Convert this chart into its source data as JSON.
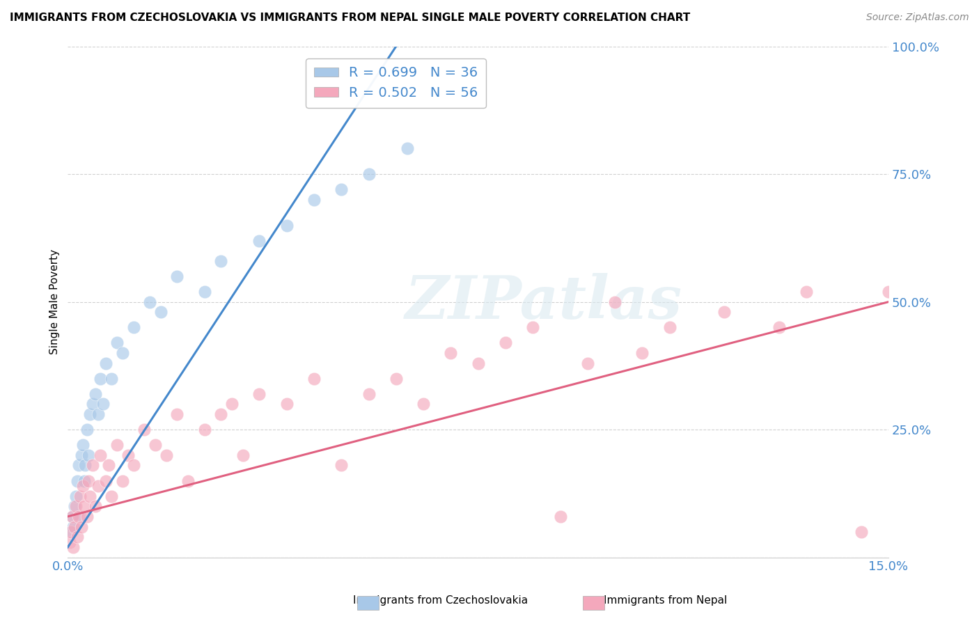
{
  "title": "IMMIGRANTS FROM CZECHOSLOVAKIA VS IMMIGRANTS FROM NEPAL SINGLE MALE POVERTY CORRELATION CHART",
  "source": "Source: ZipAtlas.com",
  "ylabel": "Single Male Poverty",
  "legend1_label": "Immigrants from Czechoslovakia",
  "legend2_label": "Immigrants from Nepal",
  "r1": 0.699,
  "n1": 36,
  "r2": 0.502,
  "n2": 56,
  "color1": "#a8c8e8",
  "color2": "#f4a8bc",
  "trendline1_color": "#4488cc",
  "trendline2_color": "#e06080",
  "watermark_text": "ZIPatlas",
  "xlim": [
    0.0,
    15.0
  ],
  "ylim": [
    0.0,
    100.0
  ],
  "background_color": "#ffffff",
  "grid_color": "#cccccc",
  "tick_color": "#4488cc",
  "trendline1_x": [
    0.0,
    6.0
  ],
  "trendline1_y": [
    2.0,
    100.0
  ],
  "trendline2_x": [
    0.0,
    15.0
  ],
  "trendline2_y": [
    8.0,
    50.0
  ],
  "czech_x": [
    0.05,
    0.08,
    0.1,
    0.12,
    0.15,
    0.18,
    0.2,
    0.22,
    0.25,
    0.28,
    0.3,
    0.32,
    0.35,
    0.38,
    0.4,
    0.45,
    0.5,
    0.55,
    0.6,
    0.65,
    0.7,
    0.8,
    0.9,
    1.0,
    1.2,
    1.5,
    1.7,
    2.0,
    2.5,
    2.8,
    3.5,
    4.0,
    4.5,
    5.0,
    5.5,
    6.2
  ],
  "czech_y": [
    5.0,
    8.0,
    6.0,
    10.0,
    12.0,
    15.0,
    18.0,
    8.0,
    20.0,
    22.0,
    15.0,
    18.0,
    25.0,
    20.0,
    28.0,
    30.0,
    32.0,
    28.0,
    35.0,
    30.0,
    38.0,
    35.0,
    42.0,
    40.0,
    45.0,
    50.0,
    48.0,
    55.0,
    52.0,
    58.0,
    62.0,
    65.0,
    70.0,
    72.0,
    75.0,
    80.0
  ],
  "nepal_x": [
    0.04,
    0.06,
    0.08,
    0.1,
    0.12,
    0.15,
    0.18,
    0.2,
    0.22,
    0.25,
    0.28,
    0.3,
    0.35,
    0.38,
    0.4,
    0.45,
    0.5,
    0.55,
    0.6,
    0.7,
    0.75,
    0.8,
    0.9,
    1.0,
    1.1,
    1.2,
    1.4,
    1.6,
    1.8,
    2.0,
    2.2,
    2.5,
    2.8,
    3.0,
    3.2,
    3.5,
    4.0,
    4.5,
    5.0,
    5.5,
    6.0,
    6.5,
    7.0,
    7.5,
    8.0,
    8.5,
    9.0,
    9.5,
    10.0,
    10.5,
    11.0,
    12.0,
    13.0,
    13.5,
    14.5,
    15.0
  ],
  "nepal_y": [
    3.0,
    5.0,
    8.0,
    2.0,
    6.0,
    10.0,
    4.0,
    8.0,
    12.0,
    6.0,
    14.0,
    10.0,
    8.0,
    15.0,
    12.0,
    18.0,
    10.0,
    14.0,
    20.0,
    15.0,
    18.0,
    12.0,
    22.0,
    15.0,
    20.0,
    18.0,
    25.0,
    22.0,
    20.0,
    28.0,
    15.0,
    25.0,
    28.0,
    30.0,
    20.0,
    32.0,
    30.0,
    35.0,
    18.0,
    32.0,
    35.0,
    30.0,
    40.0,
    38.0,
    42.0,
    45.0,
    8.0,
    38.0,
    50.0,
    40.0,
    45.0,
    48.0,
    45.0,
    52.0,
    5.0,
    52.0
  ]
}
